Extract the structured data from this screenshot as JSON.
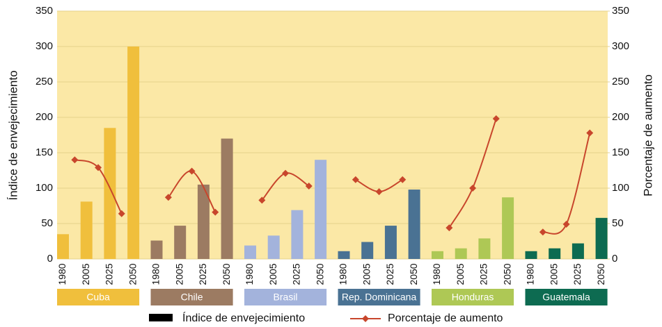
{
  "chart_data": {
    "type": "grouped-bar-line",
    "ylabel": "Índice de envejecimiento",
    "y2label": "Porcentaje de aumento",
    "ylim": [
      0,
      350
    ],
    "yticks": [
      0,
      50,
      100,
      150,
      200,
      250,
      300,
      350
    ],
    "y2lim": [
      0,
      350
    ],
    "y2ticks": [
      0,
      50,
      100,
      150,
      200,
      250,
      300,
      350
    ],
    "grid": true,
    "legend": [
      {
        "name": "Índice de envejecimiento",
        "color": "#000000"
      },
      {
        "name": "Porcentaje de aumento",
        "color": "#c8462c"
      }
    ],
    "groups": [
      {
        "name": "Cuba",
        "color": "#f0bf3c",
        "categories": [
          "1980",
          "2005",
          "2025",
          "2050"
        ],
        "values": [
          35,
          81,
          185,
          300
        ],
        "line_values": [
          140,
          129,
          64
        ]
      },
      {
        "name": "Chile",
        "color": "#9c7b62",
        "categories": [
          "1980",
          "2005",
          "2025",
          "2050"
        ],
        "values": [
          26,
          47,
          105,
          170
        ],
        "line_values": [
          87,
          124,
          66
        ]
      },
      {
        "name": "Brasil",
        "color": "#a3b3dc",
        "categories": [
          "1980",
          "2005",
          "2025",
          "2050"
        ],
        "values": [
          19,
          33,
          69,
          140
        ],
        "line_values": [
          83,
          121,
          103
        ]
      },
      {
        "name": "Rep. Dominicana",
        "color": "#4a7293",
        "categories": [
          "1980",
          "2005",
          "2025",
          "2050"
        ],
        "values": [
          11,
          24,
          47,
          98
        ],
        "line_values": [
          112,
          95,
          112
        ]
      },
      {
        "name": "Honduras",
        "color": "#aec855",
        "categories": [
          "1980",
          "2005",
          "2025",
          "2050"
        ],
        "values": [
          11,
          15,
          29,
          87
        ],
        "line_values": [
          44,
          100,
          198
        ]
      },
      {
        "name": "Guatemala",
        "color": "#0d6b51",
        "categories": [
          "1980",
          "2005",
          "2025",
          "2050"
        ],
        "values": [
          11,
          15,
          22,
          58
        ],
        "line_values": [
          38,
          49,
          178
        ]
      }
    ]
  }
}
